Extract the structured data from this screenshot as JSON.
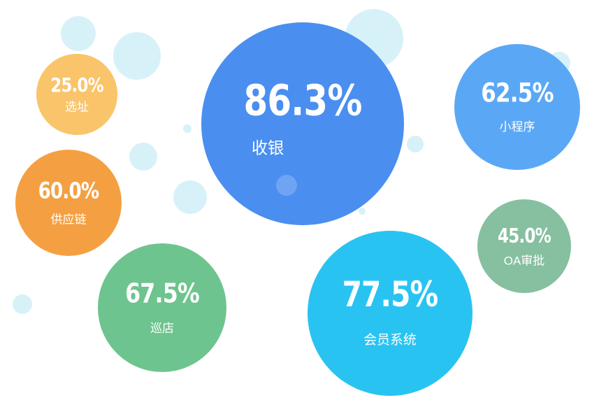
{
  "chart_data": {
    "type": "bubble",
    "categories": [
      "收银",
      "小程序",
      "选址",
      "供应链",
      "OA审批",
      "巡店",
      "会员系统"
    ],
    "values": [
      86.3,
      62.5,
      25.0,
      60.0,
      45.0,
      67.5,
      77.5
    ],
    "value_labels": [
      "86.3%",
      "62.5%",
      "25.0%",
      "60.0%",
      "45.0%",
      "67.5%",
      "77.5%"
    ],
    "colors": [
      "#4a8ef0",
      "#5aa8f5",
      "#f9c46a",
      "#f4a042",
      "#86c0a0",
      "#6ec48e",
      "#29c3f2"
    ]
  }
}
